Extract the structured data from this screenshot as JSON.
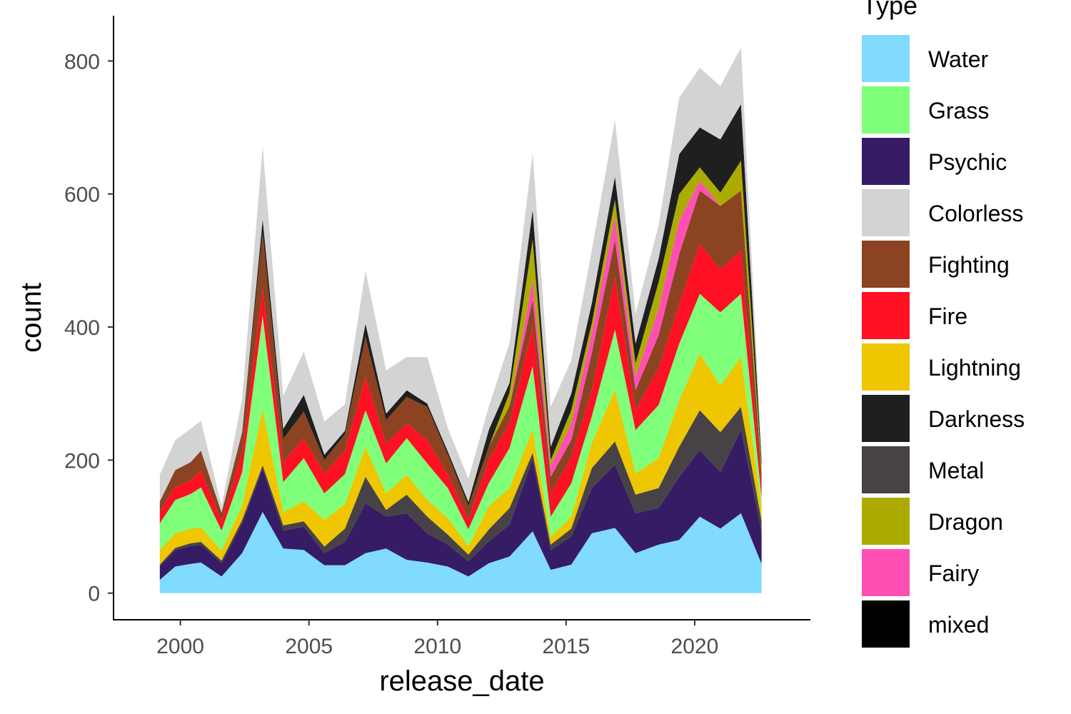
{
  "chart_data": {
    "type": "area",
    "stacked": true,
    "xlabel": "release_date",
    "ylabel": "count",
    "xlim": [
      1997.4,
      2024.5
    ],
    "ylim": [
      -40,
      868
    ],
    "x_ticks": [
      2000,
      2005,
      2010,
      2015,
      2020
    ],
    "x_tick_labels": [
      "2000",
      "2005",
      "2010",
      "2015",
      "2020"
    ],
    "y_ticks": [
      0,
      200,
      400,
      600,
      800
    ],
    "y_tick_labels": [
      "0",
      "200",
      "400",
      "600",
      "800"
    ],
    "grid": false,
    "legend": {
      "title": "Type",
      "position": "right"
    },
    "x": [
      1999.2,
      1999.8,
      2000.4,
      2000.8,
      2001.6,
      2002.4,
      2003.2,
      2004.0,
      2004.8,
      2005.6,
      2006.4,
      2007.2,
      2008.0,
      2008.8,
      2009.6,
      2010.4,
      2011.2,
      2012.0,
      2012.8,
      2013.7,
      2014.4,
      2015.2,
      2016.0,
      2016.9,
      2017.7,
      2018.6,
      2019.4,
      2020.2,
      2021.0,
      2021.8,
      2022.6
    ],
    "series": [
      {
        "name": "Water",
        "color": "#80dbff",
        "values": [
          20,
          40,
          44,
          46,
          25,
          60,
          122,
          67,
          65,
          42,
          42,
          60,
          67,
          50,
          46,
          40,
          25,
          45,
          55,
          93,
          35,
          43,
          90,
          98,
          60,
          73,
          80,
          115,
          97,
          120,
          44
        ]
      },
      {
        "name": "Psychic",
        "color": "#361c65",
        "values": [
          20,
          25,
          27,
          27,
          20,
          45,
          65,
          27,
          35,
          18,
          35,
          75,
          48,
          70,
          44,
          33,
          23,
          33,
          48,
          108,
          30,
          42,
          68,
          95,
          60,
          55,
          95,
          100,
          85,
          125,
          50
        ]
      },
      {
        "name": "Metal",
        "color": "#474246",
        "values": [
          3,
          3,
          4,
          4,
          4,
          5,
          5,
          8,
          8,
          10,
          20,
          40,
          10,
          28,
          25,
          15,
          10,
          18,
          25,
          10,
          8,
          12,
          30,
          35,
          28,
          30,
          45,
          60,
          60,
          35,
          15
        ]
      },
      {
        "name": "Lightning",
        "color": "#eec601",
        "values": [
          22,
          22,
          22,
          22,
          15,
          22,
          85,
          20,
          30,
          40,
          37,
          45,
          25,
          30,
          25,
          25,
          13,
          35,
          30,
          35,
          12,
          18,
          38,
          78,
          32,
          45,
          70,
          85,
          70,
          75,
          20
        ]
      },
      {
        "name": "Grass",
        "color": "#80ff7a",
        "values": [
          40,
          50,
          52,
          60,
          30,
          50,
          140,
          45,
          65,
          40,
          45,
          55,
          45,
          55,
          55,
          45,
          25,
          35,
          60,
          95,
          30,
          50,
          40,
          90,
          65,
          80,
          85,
          90,
          110,
          95,
          15
        ]
      },
      {
        "name": "Fire",
        "color": "#ff1023",
        "values": [
          18,
          20,
          20,
          25,
          15,
          30,
          40,
          30,
          30,
          30,
          35,
          50,
          30,
          22,
          35,
          20,
          15,
          35,
          38,
          60,
          35,
          40,
          40,
          80,
          30,
          55,
          60,
          75,
          65,
          65,
          20
        ]
      },
      {
        "name": "Fighting",
        "color": "#8b4321",
        "values": [
          15,
          25,
          28,
          30,
          12,
          30,
          85,
          35,
          40,
          20,
          25,
          60,
          35,
          40,
          50,
          30,
          20,
          20,
          25,
          40,
          25,
          25,
          55,
          55,
          30,
          50,
          75,
          80,
          95,
          90,
          15
        ]
      },
      {
        "name": "Fairy",
        "color": "#ff4fb4",
        "values": [
          0,
          0,
          0,
          0,
          0,
          0,
          0,
          0,
          0,
          0,
          0,
          0,
          0,
          0,
          0,
          0,
          0,
          0,
          0,
          30,
          15,
          25,
          30,
          35,
          20,
          40,
          50,
          15,
          0,
          0,
          0
        ]
      },
      {
        "name": "Dragon",
        "color": "#acac00",
        "values": [
          0,
          0,
          0,
          0,
          0,
          0,
          0,
          0,
          0,
          0,
          0,
          0,
          0,
          0,
          0,
          0,
          0,
          0,
          20,
          60,
          10,
          20,
          15,
          25,
          20,
          40,
          40,
          20,
          20,
          45,
          10
        ]
      },
      {
        "name": "Darkness",
        "color": "#1f1f1f",
        "values": [
          0,
          0,
          0,
          0,
          0,
          0,
          20,
          15,
          25,
          8,
          5,
          20,
          10,
          10,
          5,
          5,
          6,
          25,
          15,
          45,
          20,
          25,
          30,
          35,
          30,
          35,
          60,
          60,
          80,
          85,
          10
        ]
      },
      {
        "name": "Colorless",
        "color": "#d3d3d3",
        "values": [
          40,
          45,
          50,
          45,
          10,
          50,
          110,
          50,
          65,
          50,
          40,
          80,
          65,
          50,
          70,
          35,
          35,
          35,
          60,
          85,
          60,
          50,
          80,
          85,
          45,
          50,
          85,
          90,
          80,
          85,
          10
        ]
      },
      {
        "name": "mixed",
        "color": "#000000",
        "values": [
          0,
          0,
          0,
          0,
          0,
          0,
          0,
          0,
          0,
          0,
          0,
          0,
          0,
          0,
          0,
          0,
          0,
          0,
          0,
          0,
          0,
          0,
          0,
          0,
          0,
          0,
          0,
          0,
          0,
          0,
          0
        ]
      }
    ],
    "legend_order": [
      "Water",
      "Grass",
      "Psychic",
      "Colorless",
      "Fighting",
      "Fire",
      "Lightning",
      "Darkness",
      "Metal",
      "Dragon",
      "Fairy",
      "mixed"
    ]
  }
}
